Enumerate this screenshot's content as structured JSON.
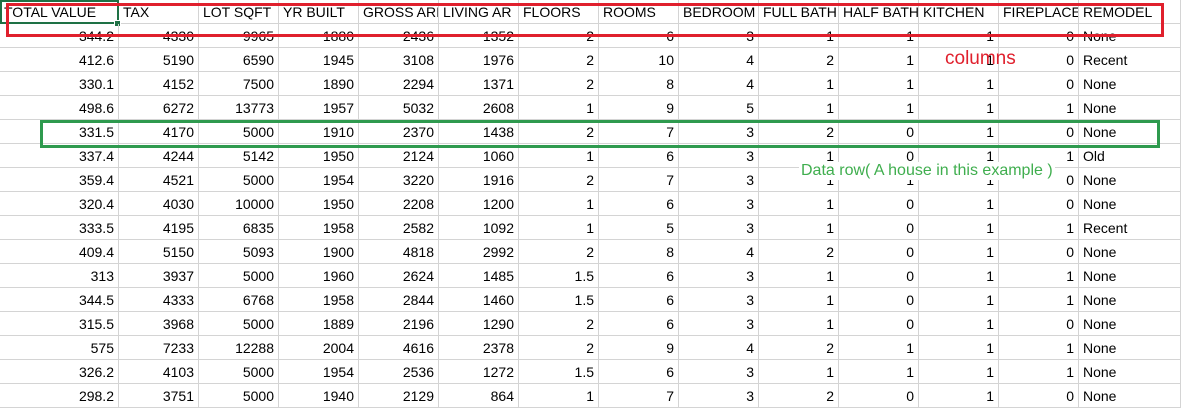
{
  "columns": [
    "TOTAL VALUE",
    "TAX",
    "LOT SQFT",
    "YR BUILT",
    "GROSS ARI",
    "LIVING AR",
    "FLOORS",
    "ROOMS",
    "BEDROOM",
    "FULL BATH",
    "HALF BATH",
    "KITCHEN",
    "FIREPLACE",
    "REMODEL"
  ],
  "rows": [
    [
      "344.2",
      "4330",
      "9965",
      "1880",
      "2436",
      "1352",
      "2",
      "6",
      "3",
      "1",
      "1",
      "1",
      "0",
      "None"
    ],
    [
      "412.6",
      "5190",
      "6590",
      "1945",
      "3108",
      "1976",
      "2",
      "10",
      "4",
      "2",
      "1",
      "1",
      "0",
      "Recent"
    ],
    [
      "330.1",
      "4152",
      "7500",
      "1890",
      "2294",
      "1371",
      "2",
      "8",
      "4",
      "1",
      "1",
      "1",
      "0",
      "None"
    ],
    [
      "498.6",
      "6272",
      "13773",
      "1957",
      "5032",
      "2608",
      "1",
      "9",
      "5",
      "1",
      "1",
      "1",
      "1",
      "None"
    ],
    [
      "331.5",
      "4170",
      "5000",
      "1910",
      "2370",
      "1438",
      "2",
      "7",
      "3",
      "2",
      "0",
      "1",
      "0",
      "None"
    ],
    [
      "337.4",
      "4244",
      "5142",
      "1950",
      "2124",
      "1060",
      "1",
      "6",
      "3",
      "1",
      "0",
      "1",
      "1",
      "Old"
    ],
    [
      "359.4",
      "4521",
      "5000",
      "1954",
      "3220",
      "1916",
      "2",
      "7",
      "3",
      "1",
      "1",
      "1",
      "0",
      "None"
    ],
    [
      "320.4",
      "4030",
      "10000",
      "1950",
      "2208",
      "1200",
      "1",
      "6",
      "3",
      "1",
      "0",
      "1",
      "0",
      "None"
    ],
    [
      "333.5",
      "4195",
      "6835",
      "1958",
      "2582",
      "1092",
      "1",
      "5",
      "3",
      "1",
      "0",
      "1",
      "1",
      "Recent"
    ],
    [
      "409.4",
      "5150",
      "5093",
      "1900",
      "4818",
      "2992",
      "2",
      "8",
      "4",
      "2",
      "0",
      "1",
      "0",
      "None"
    ],
    [
      "313",
      "3937",
      "5000",
      "1960",
      "2624",
      "1485",
      "1.5",
      "6",
      "3",
      "1",
      "0",
      "1",
      "1",
      "None"
    ],
    [
      "344.5",
      "4333",
      "6768",
      "1958",
      "2844",
      "1460",
      "1.5",
      "6",
      "3",
      "1",
      "0",
      "1",
      "1",
      "None"
    ],
    [
      "315.5",
      "3968",
      "5000",
      "1889",
      "2196",
      "1290",
      "2",
      "6",
      "3",
      "1",
      "0",
      "1",
      "0",
      "None"
    ],
    [
      "575",
      "7233",
      "12288",
      "2004",
      "4616",
      "2378",
      "2",
      "9",
      "4",
      "2",
      "1",
      "1",
      "1",
      "None"
    ],
    [
      "326.2",
      "4103",
      "5000",
      "1954",
      "2536",
      "1272",
      "1.5",
      "6",
      "3",
      "1",
      "1",
      "1",
      "1",
      "None"
    ],
    [
      "298.2",
      "3751",
      "5000",
      "1940",
      "2129",
      "864",
      "1",
      "7",
      "3",
      "2",
      "0",
      "1",
      "0",
      "None"
    ]
  ],
  "annotations": {
    "columns_label": "columns",
    "data_row_label": "Data row( A house in this example )"
  },
  "colors": {
    "columns_box": "#e0202d",
    "data_row_box": "#2e9a4e",
    "selection": "#1e7145",
    "gridline": "#d4d4d4"
  }
}
